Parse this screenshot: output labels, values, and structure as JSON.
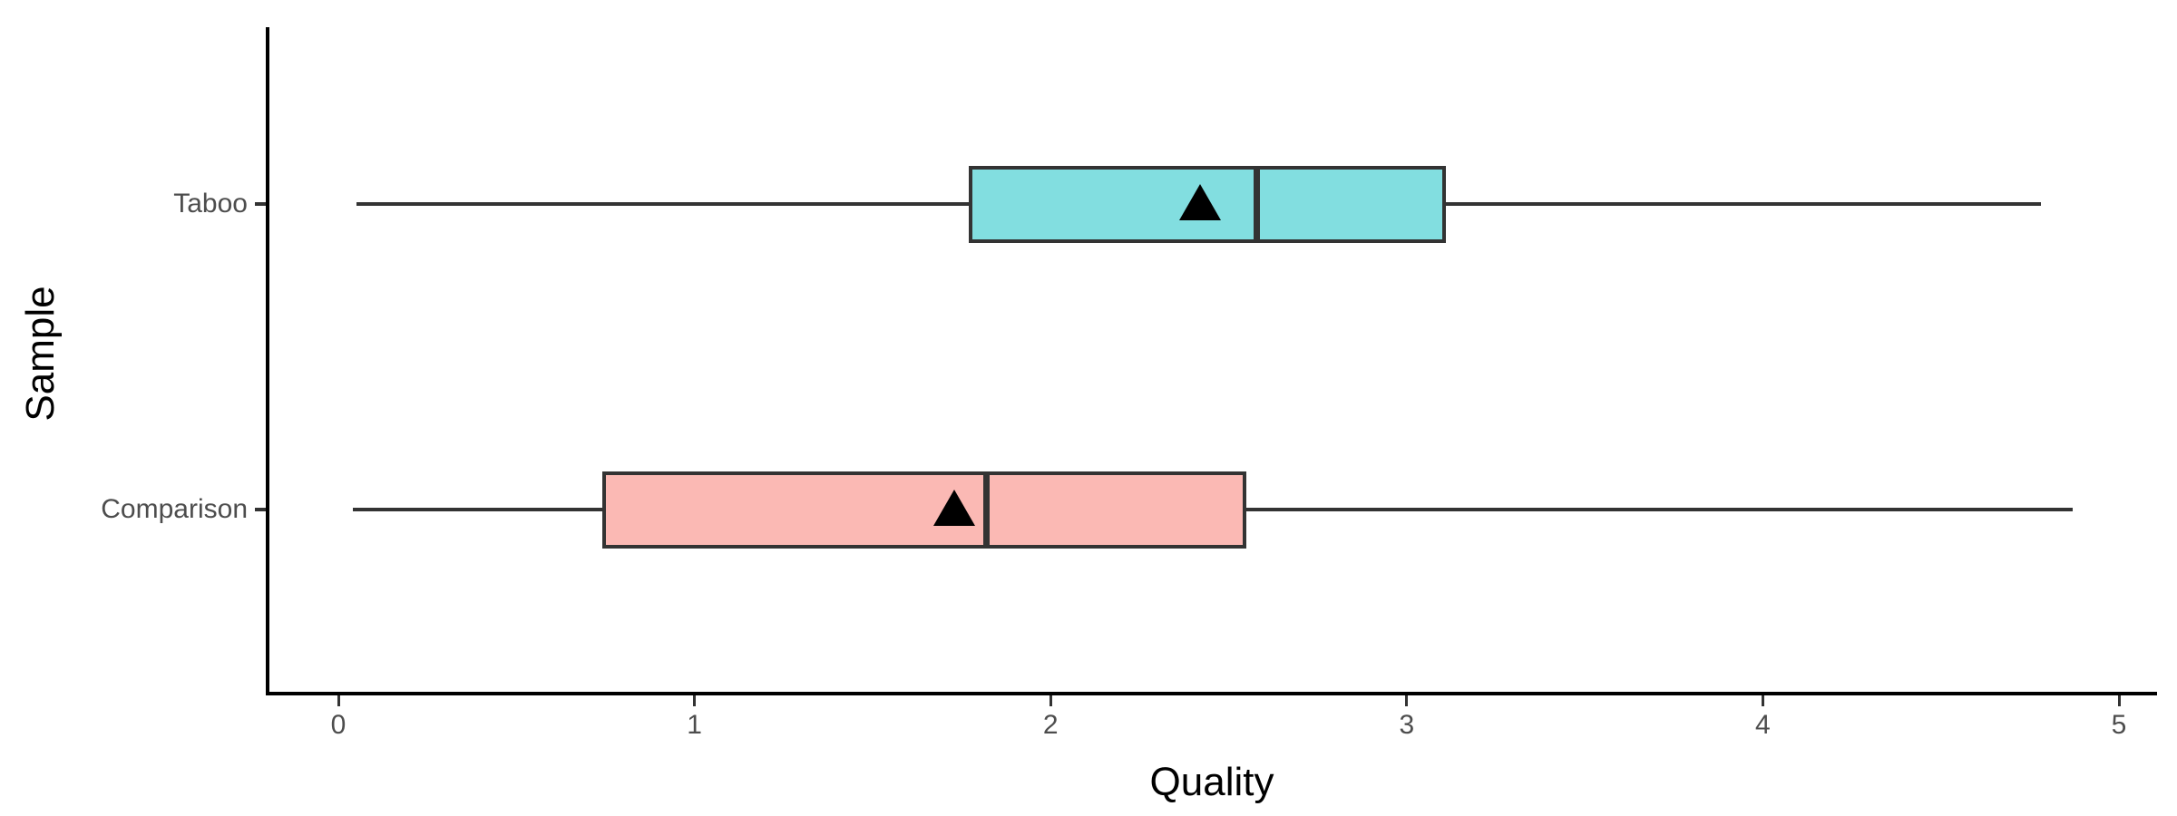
{
  "chart_data": {
    "type": "boxplot",
    "orientation": "horizontal",
    "title": "",
    "xlabel": "Quality",
    "ylabel": "Sample",
    "xlim": [
      0,
      5
    ],
    "x_ticks": [
      0,
      1,
      2,
      3,
      4,
      5
    ],
    "categories": [
      "Taboo",
      "Comparison"
    ],
    "series": [
      {
        "name": "Taboo",
        "min": 0.05,
        "q1": 1.77,
        "median": 2.58,
        "q3": 3.11,
        "max": 4.78,
        "mean": 2.42,
        "fill": "#82DEE0"
      },
      {
        "name": "Comparison",
        "min": 0.04,
        "q1": 0.74,
        "median": 1.82,
        "q3": 2.55,
        "max": 4.87,
        "mean": 1.73,
        "fill": "#FBB9B4"
      }
    ],
    "mean_marker": "filled-triangle-up",
    "legend": "none",
    "grid": "off",
    "background": "#FFFFFF"
  },
  "colors": {
    "taboo_fill": "#82DEE0",
    "comparison_fill": "#FBB9B4",
    "box_border": "#333333",
    "whisker": "#333333",
    "median_line": "#333333",
    "mean_marker": "#000000",
    "axis_line": "#000000",
    "tick_label": "#4D4D4D",
    "axis_title": "#000000"
  }
}
